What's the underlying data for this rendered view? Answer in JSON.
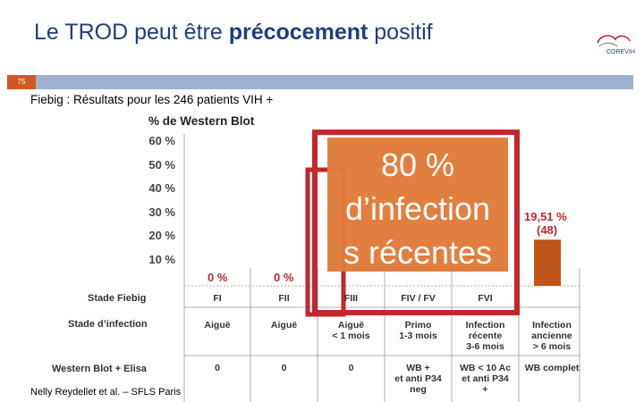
{
  "slide": {
    "title_pre": "Le TROD peut être ",
    "title_bold": "précocement",
    "title_post": " positif",
    "slide_number": "75",
    "subtitle": "Fiebig : Résultats pour les 246 patients VIH +",
    "logo_text": "COREVIH",
    "credit": "Nelly Reydellet et al. – SFLS Paris",
    "callout_lines": [
      "80 %",
      "d’infection",
      "s récentes"
    ],
    "colors": {
      "title": "#1f3f7a",
      "orange": "#e07b3a",
      "red_outline": "#c1272d",
      "bar": "#c0561b",
      "pct_red": "#c1272d"
    }
  },
  "chart_data": {
    "type": "table",
    "ylabel": "% de Western Blot",
    "yticks": [
      "60 %",
      "50 %",
      "40 %",
      "30 %",
      "20 %",
      "10 %"
    ],
    "ylim": [
      0,
      60
    ],
    "stages": [
      "FI",
      "FII",
      "FIII",
      "FIV / FV",
      "FVI",
      ""
    ],
    "values_labeled": [
      {
        "stage": "FI",
        "label": "0 %",
        "value": 0
      },
      {
        "stage": "FII",
        "label": "0 %",
        "value": 0
      },
      {
        "stage": "",
        "label": "19,51 %",
        "sublabel": "(48)",
        "value": 19.51
      }
    ],
    "rows": [
      {
        "label": "Stade Fiebig",
        "cells": [
          "FI",
          "FII",
          "FIII",
          "FIV / FV",
          "FVI",
          ""
        ]
      },
      {
        "label": "Stade d’infection",
        "cells": [
          "Aiguë",
          "Aiguë",
          "Aiguë\n< 1 mois",
          "Primo\n1-3 mois",
          "Infection\nrécente\n3-6 mois",
          "Infection\nancienne\n> 6 mois"
        ]
      },
      {
        "label": "Western Blot + Elisa",
        "cells": [
          "0",
          "0",
          "0",
          "WB +\net anti P34\nneg",
          "WB < 10 Ac\net anti P34\n+",
          "WB complet"
        ]
      }
    ]
  }
}
